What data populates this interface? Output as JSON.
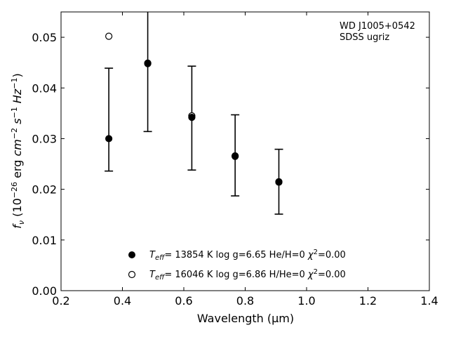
{
  "chart_data": {
    "type": "scatter",
    "xlabel": "Wavelength (μm)",
    "ylabel": "f_ν (10^-26 erg cm^-2 s^-1 Hz^-1)",
    "xlim": [
      0.2,
      1.4
    ],
    "ylim": [
      0.0,
      0.055
    ],
    "x_ticks": [
      "0.2",
      "0.4",
      "0.6",
      "0.8",
      "1.0",
      "1.2",
      "1.4"
    ],
    "y_ticks": [
      "0.00",
      "0.01",
      "0.02",
      "0.03",
      "0.04",
      "0.05"
    ],
    "annotation": [
      "WD J1005+0542",
      "SDSS ugriz"
    ],
    "legend_placement": "bottom-center",
    "series": [
      {
        "name": "T_eff= 13854 K  log g=6.65  He/H=0  χ²=0.00",
        "marker": "filled-circle",
        "x": [
          0.3557,
          0.4825,
          0.6261,
          0.7672,
          0.9097
        ],
        "y": [
          0.03,
          0.0448,
          0.0342,
          0.0265,
          0.0215
        ]
      },
      {
        "name": "T_eff= 16046 K  log g=6.86  H/He=0  χ²=0.00",
        "marker": "open-circle",
        "x": [
          0.3557,
          0.4825,
          0.6261,
          0.7672,
          0.9097
        ],
        "y": [
          0.0502,
          0.0449,
          0.0345,
          0.0266,
          0.0214
        ]
      }
    ],
    "observed": {
      "x": [
        0.3557,
        0.4825,
        0.6261,
        0.7672,
        0.9097
      ],
      "y_low": [
        0.0236,
        0.0314,
        0.0238,
        0.0187,
        0.0151
      ],
      "y_high": [
        0.0439,
        0.056,
        0.0443,
        0.0347,
        0.0279
      ]
    }
  }
}
